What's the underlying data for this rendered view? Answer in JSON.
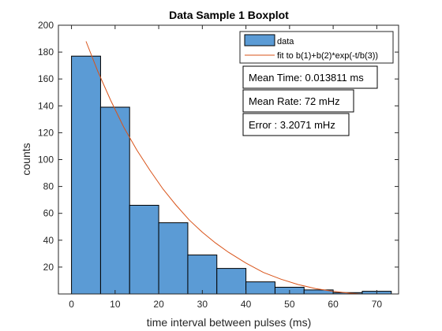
{
  "chart_data": {
    "type": "bar",
    "title": "Data Sample 1 Boxplot",
    "xlabel": "time interval between pulses (ms)",
    "ylabel": "counts",
    "xlim": [
      -3,
      75
    ],
    "ylim": [
      0,
      200
    ],
    "xticks": [
      0,
      10,
      20,
      30,
      40,
      50,
      60,
      70
    ],
    "yticks": [
      20,
      40,
      60,
      80,
      100,
      120,
      140,
      160,
      180,
      200
    ],
    "grid": false,
    "legend_position": "top-right",
    "bins": {
      "edges": [
        0,
        6.67,
        13.33,
        20,
        26.67,
        33.33,
        40,
        46.67,
        53.33,
        60,
        66.67,
        73.33
      ],
      "counts": [
        177,
        139,
        66,
        53,
        29,
        19,
        9,
        5,
        3,
        1,
        2
      ]
    },
    "series": [
      {
        "name": "data",
        "kind": "histogram",
        "color": "#5b9bd5"
      },
      {
        "name": "fit to b(1)+b(2)*exp(-t/b(3))",
        "kind": "line",
        "color": "#d95319",
        "x": [
          3.33,
          6,
          9,
          12,
          15,
          18,
          21,
          24,
          27,
          30,
          33,
          36,
          40,
          44,
          48,
          52,
          56,
          60,
          64,
          66.5
        ],
        "y": [
          188,
          166,
          144,
          124,
          107,
          92,
          78,
          66,
          55,
          46,
          38,
          31,
          23,
          16,
          11,
          7,
          4,
          2,
          0.5,
          0
        ]
      }
    ],
    "annotations": [
      "Mean Time: 0.013811 ms",
      "Mean Rate: 72 mHz",
      "Error : 3.2071 mHz"
    ]
  }
}
